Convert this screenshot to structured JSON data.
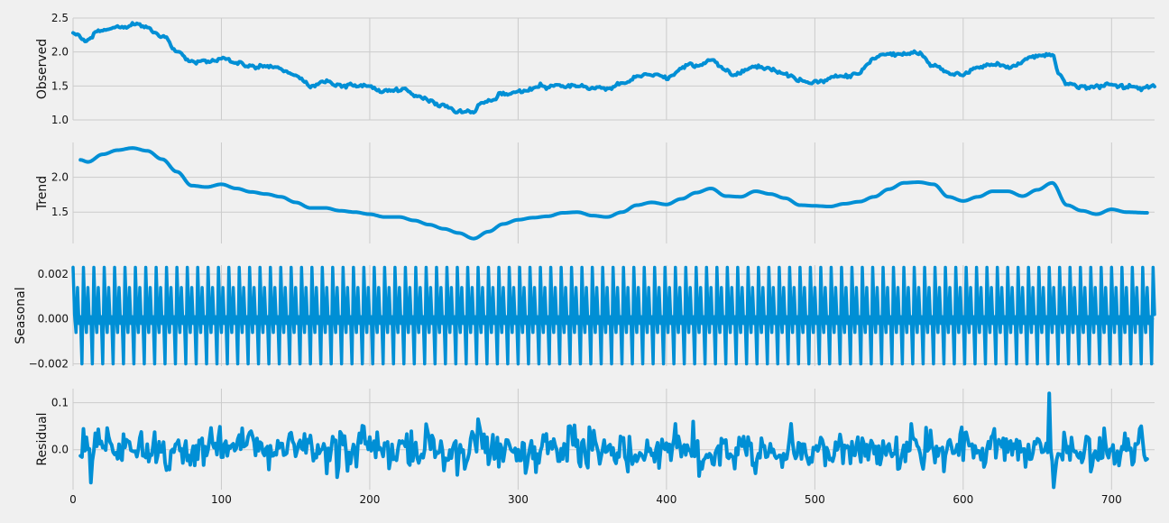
{
  "chart_data": [
    {
      "type": "line",
      "ylabel": "Observed",
      "xlim": [
        0,
        729
      ],
      "ylim": [
        1.0,
        2.5
      ],
      "yticks": [
        1.0,
        1.5,
        2.0,
        2.5
      ],
      "ytick_labels": [
        "1.0",
        "1.5",
        "2.0",
        "2.5"
      ],
      "x": [
        0,
        10,
        20,
        30,
        40,
        50,
        60,
        70,
        80,
        90,
        100,
        110,
        120,
        130,
        140,
        150,
        160,
        170,
        180,
        190,
        200,
        210,
        220,
        230,
        240,
        250,
        260,
        270,
        275,
        280,
        290,
        300,
        310,
        320,
        330,
        340,
        350,
        360,
        370,
        380,
        390,
        400,
        410,
        420,
        430,
        440,
        450,
        460,
        470,
        480,
        490,
        500,
        510,
        520,
        530,
        540,
        550,
        560,
        570,
        580,
        590,
        600,
        610,
        620,
        630,
        640,
        650,
        660,
        665,
        670,
        680,
        690,
        700,
        710,
        720,
        729
      ],
      "values": [
        2.27,
        2.2,
        2.33,
        2.38,
        2.42,
        2.39,
        2.22,
        2.0,
        1.85,
        1.83,
        1.92,
        1.86,
        1.78,
        1.76,
        1.73,
        1.65,
        1.55,
        1.56,
        1.52,
        1.5,
        1.47,
        1.43,
        1.42,
        1.35,
        1.3,
        1.22,
        1.14,
        1.12,
        1.25,
        1.3,
        1.38,
        1.42,
        1.44,
        1.47,
        1.52,
        1.5,
        1.47,
        1.48,
        1.55,
        1.64,
        1.65,
        1.6,
        1.75,
        1.82,
        1.87,
        1.73,
        1.71,
        1.82,
        1.78,
        1.67,
        1.6,
        1.58,
        1.62,
        1.64,
        1.7,
        1.88,
        1.95,
        1.97,
        1.95,
        1.78,
        1.67,
        1.68,
        1.78,
        1.82,
        1.77,
        1.88,
        1.95,
        1.98,
        1.65,
        1.55,
        1.5,
        1.47,
        1.52,
        1.5,
        1.52,
        1.5
      ]
    },
    {
      "type": "line",
      "ylabel": "Trend",
      "xlim": [
        0,
        729
      ],
      "ylim": [
        1.05,
        2.5
      ],
      "yticks": [
        1.5,
        2.0
      ],
      "ytick_labels": [
        "1.5",
        "2.0"
      ],
      "x": [
        5,
        10,
        20,
        30,
        40,
        50,
        60,
        70,
        80,
        90,
        100,
        110,
        120,
        130,
        140,
        150,
        160,
        170,
        180,
        190,
        200,
        210,
        220,
        230,
        240,
        250,
        260,
        270,
        280,
        290,
        300,
        310,
        320,
        330,
        340,
        350,
        360,
        370,
        380,
        390,
        400,
        410,
        420,
        430,
        440,
        450,
        460,
        470,
        480,
        490,
        500,
        510,
        520,
        530,
        540,
        550,
        560,
        570,
        580,
        590,
        600,
        610,
        620,
        630,
        640,
        650,
        660,
        670,
        680,
        690,
        700,
        710,
        724
      ],
      "values": [
        2.25,
        2.22,
        2.33,
        2.39,
        2.42,
        2.38,
        2.26,
        2.08,
        1.88,
        1.86,
        1.9,
        1.84,
        1.79,
        1.76,
        1.72,
        1.64,
        1.56,
        1.56,
        1.52,
        1.5,
        1.47,
        1.43,
        1.43,
        1.38,
        1.32,
        1.26,
        1.2,
        1.12,
        1.22,
        1.33,
        1.39,
        1.42,
        1.44,
        1.49,
        1.5,
        1.45,
        1.43,
        1.5,
        1.6,
        1.64,
        1.61,
        1.69,
        1.78,
        1.84,
        1.73,
        1.72,
        1.8,
        1.76,
        1.7,
        1.6,
        1.59,
        1.58,
        1.62,
        1.65,
        1.72,
        1.83,
        1.92,
        1.93,
        1.9,
        1.72,
        1.66,
        1.72,
        1.8,
        1.8,
        1.73,
        1.82,
        1.92,
        1.6,
        1.52,
        1.47,
        1.54,
        1.5,
        1.49
      ]
    },
    {
      "type": "line",
      "ylabel": "Seasonal",
      "xlim": [
        0,
        729
      ],
      "ylim": [
        -0.0021,
        0.0024
      ],
      "yticks": [
        -0.002,
        0.0,
        0.002
      ],
      "ytick_labels": [
        "−0.002",
        "0.000",
        "0.002"
      ],
      "period": 7,
      "weekly_pattern": [
        0.0023,
        0.0002,
        -0.0006,
        0.0014,
        -0.0002,
        0.0001,
        -0.002
      ],
      "x_range": [
        0,
        729
      ]
    },
    {
      "type": "line",
      "ylabel": "Residual",
      "xlim": [
        0,
        729
      ],
      "ylim": [
        -0.085,
        0.13
      ],
      "yticks": [
        0.0,
        0.1
      ],
      "ytick_labels": [
        "0.0",
        "0.1"
      ],
      "x_range": [
        5,
        724
      ],
      "values_approx_range": [
        -0.08,
        0.12
      ],
      "spikes": [
        {
          "x": 12,
          "value": -0.07
        },
        {
          "x": 273,
          "value": 0.065
        },
        {
          "x": 418,
          "value": 0.06
        },
        {
          "x": 658,
          "value": 0.12
        },
        {
          "x": 661,
          "value": -0.08
        },
        {
          "x": 720,
          "value": 0.05
        }
      ]
    }
  ],
  "x_axis": {
    "ticks": [
      0,
      100,
      200,
      300,
      400,
      500,
      600,
      700
    ],
    "tick_labels": [
      "0",
      "100",
      "200",
      "300",
      "400",
      "500",
      "600",
      "700"
    ]
  },
  "colors": {
    "line": "#008fd5",
    "grid": "#cbcbcb",
    "background": "#f0f0f0"
  }
}
